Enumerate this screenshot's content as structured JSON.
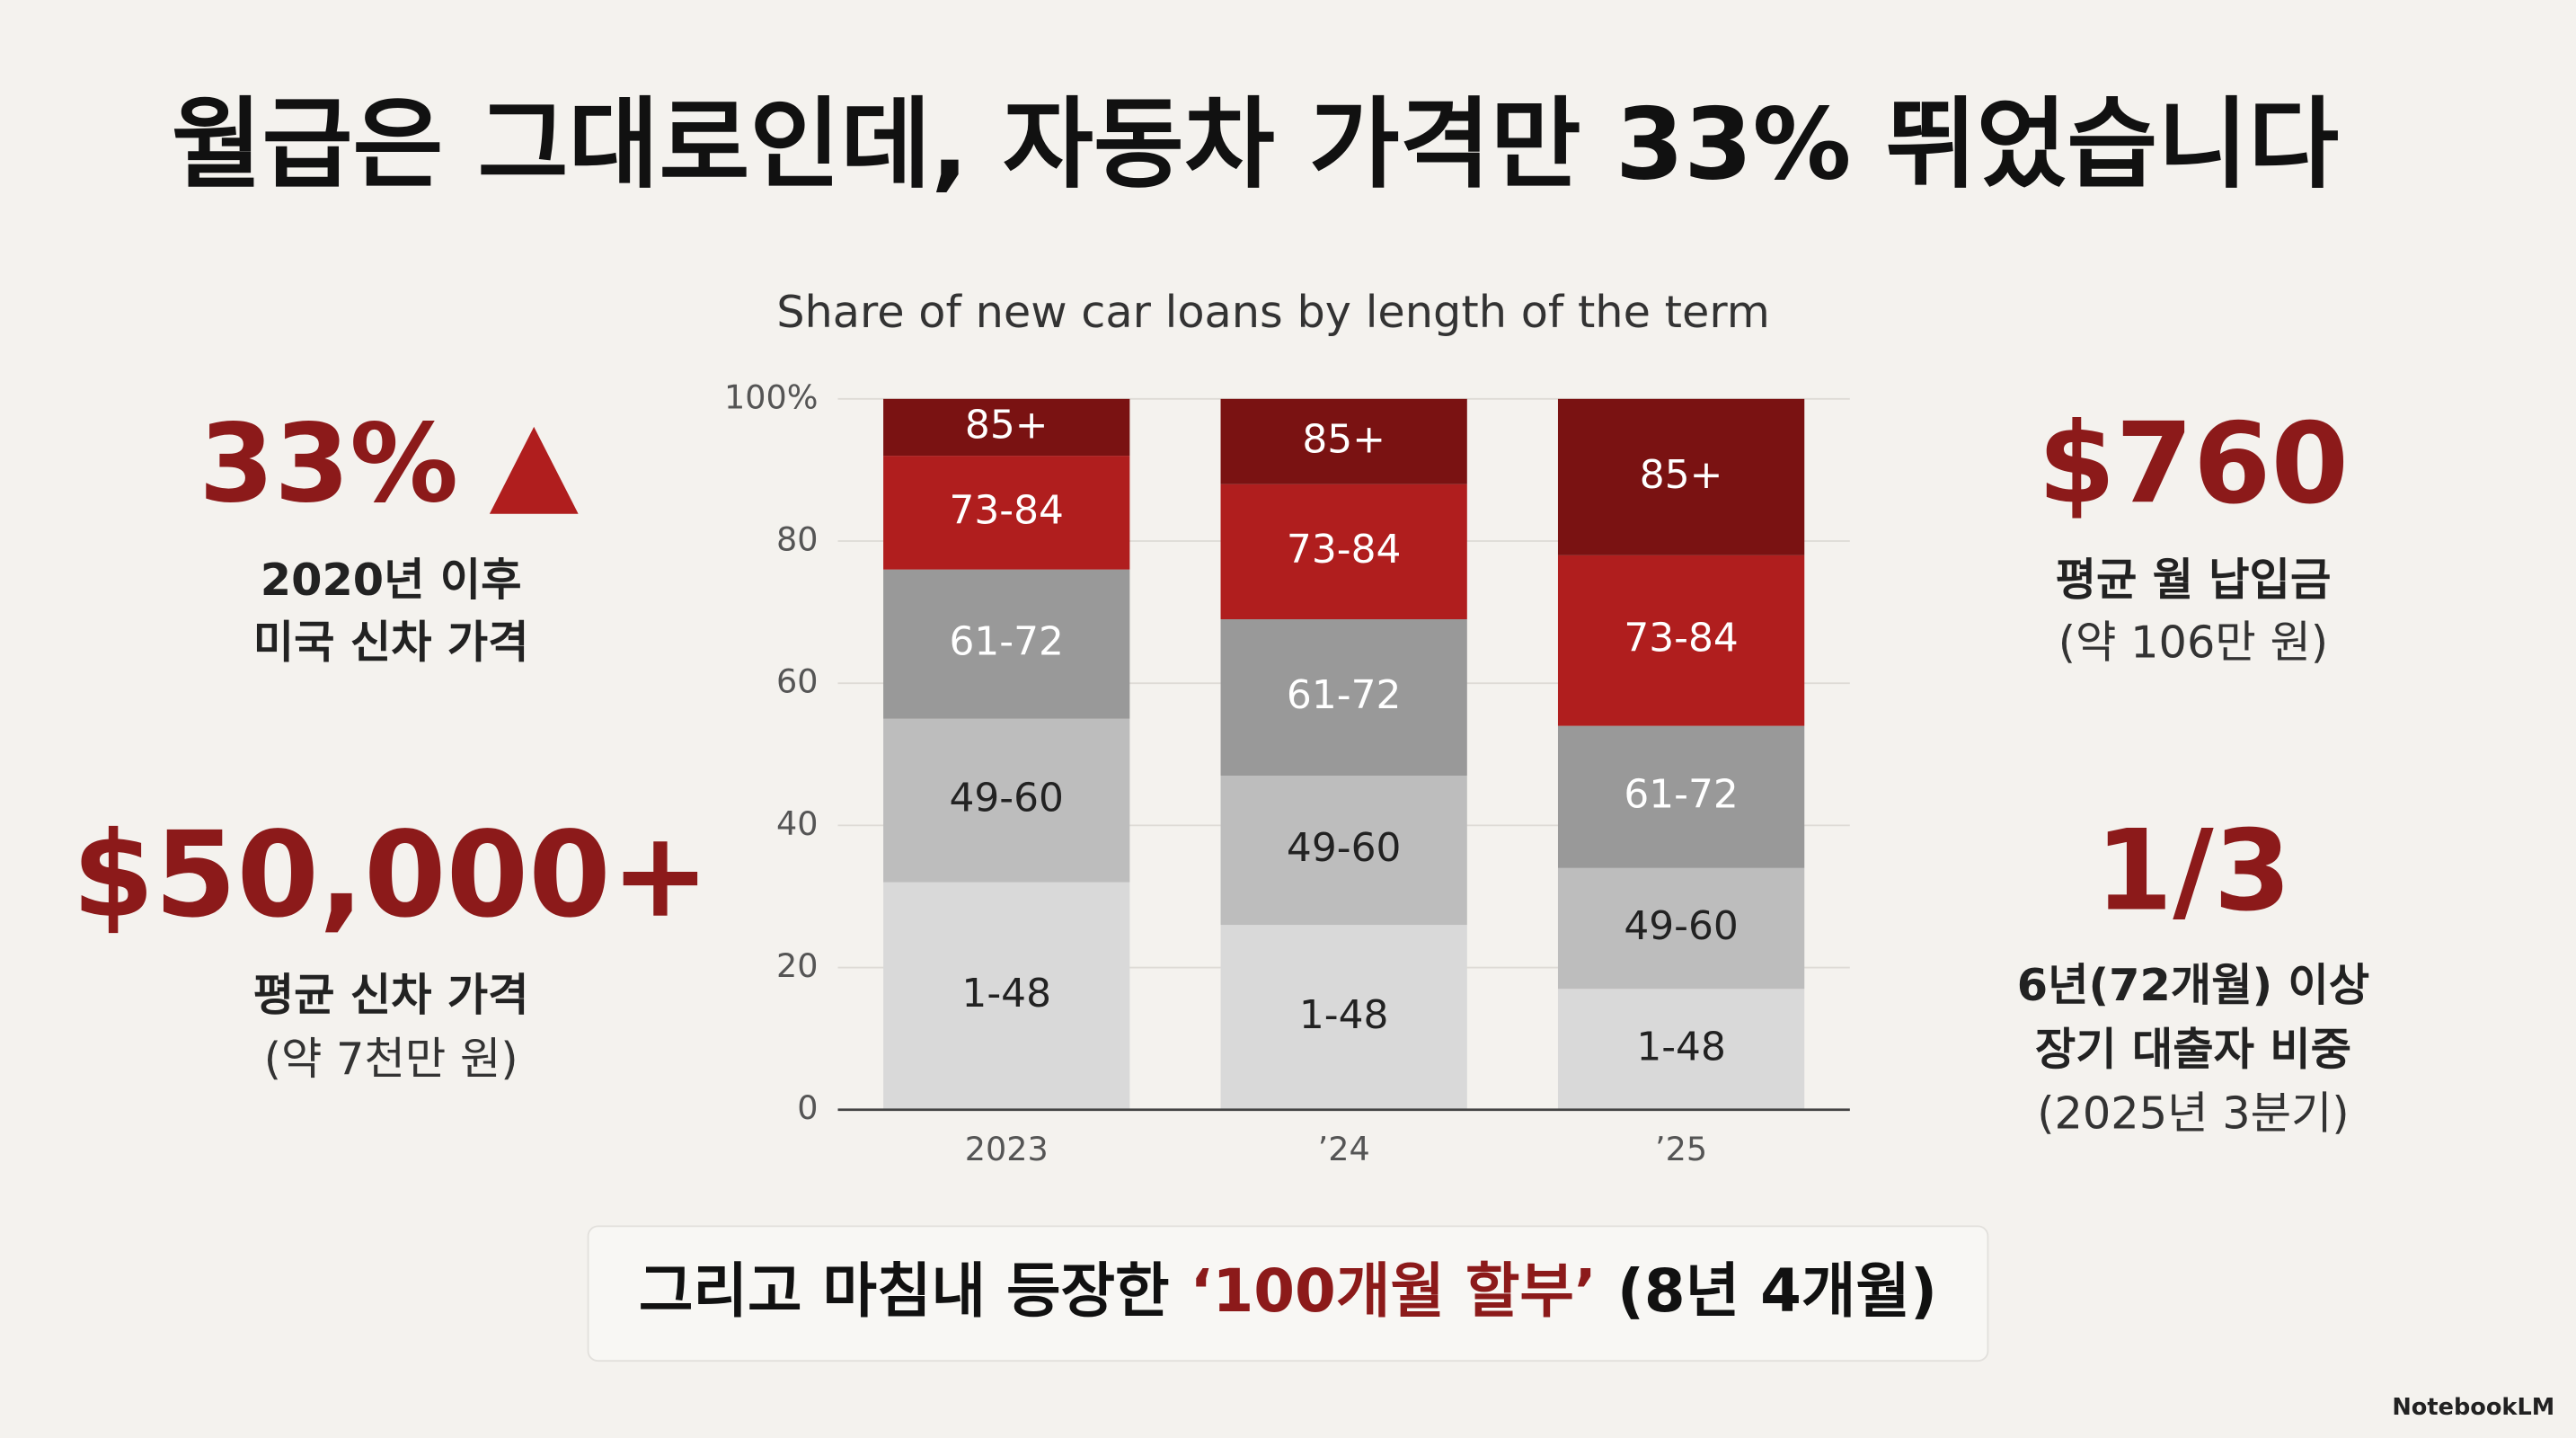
{
  "header": {
    "title": "월급은 그대로인데, 자동차 가격만 33% 뛰었습니다"
  },
  "stats_left": [
    {
      "value": "33%",
      "lines": [
        "2020년 이후",
        "미국 신차 가격"
      ]
    },
    {
      "value": "$50,000+",
      "lines": [
        "평균 신차 가격",
        "(약 7천만 원)"
      ]
    }
  ],
  "stats_right": [
    {
      "value": "$760",
      "lines": [
        "평균 월 납입금",
        "(약 106만 원)"
      ]
    },
    {
      "value": "1/3",
      "lines": [
        "6년(72개월) 이상",
        "장기 대출자 비중",
        "(2025년 3분기)"
      ]
    }
  ],
  "banner": [
    "그리고 마침내 등장한 ",
    "‘100개월 할부’",
    " (8년 4개월)"
  ],
  "footer": "NotebookLM",
  "chart_data": {
    "type": "stacked_bar",
    "title": "Share of new car loans by length of the term",
    "categories": [
      "2023",
      "’24",
      "’25"
    ],
    "series": [
      {
        "name": "1-48",
        "color": "#d9d9d9",
        "values": [
          32,
          26,
          17
        ]
      },
      {
        "name": "49-60",
        "color": "#bdbdbd",
        "values": [
          23,
          21,
          17
        ]
      },
      {
        "name": "61-72",
        "color": "#999999",
        "values": [
          21,
          22,
          20
        ]
      },
      {
        "name": "73-84",
        "color": "#b01e1e",
        "values": [
          16,
          19,
          24
        ]
      },
      {
        "name": "85+",
        "color": "#7a1212",
        "values": [
          8,
          12,
          22
        ]
      }
    ],
    "ylim": [
      0,
      100
    ],
    "yticks": [
      0,
      20,
      40,
      60,
      80,
      {
        "value": 100,
        "label": "100%"
      }
    ],
    "grid": true
  }
}
